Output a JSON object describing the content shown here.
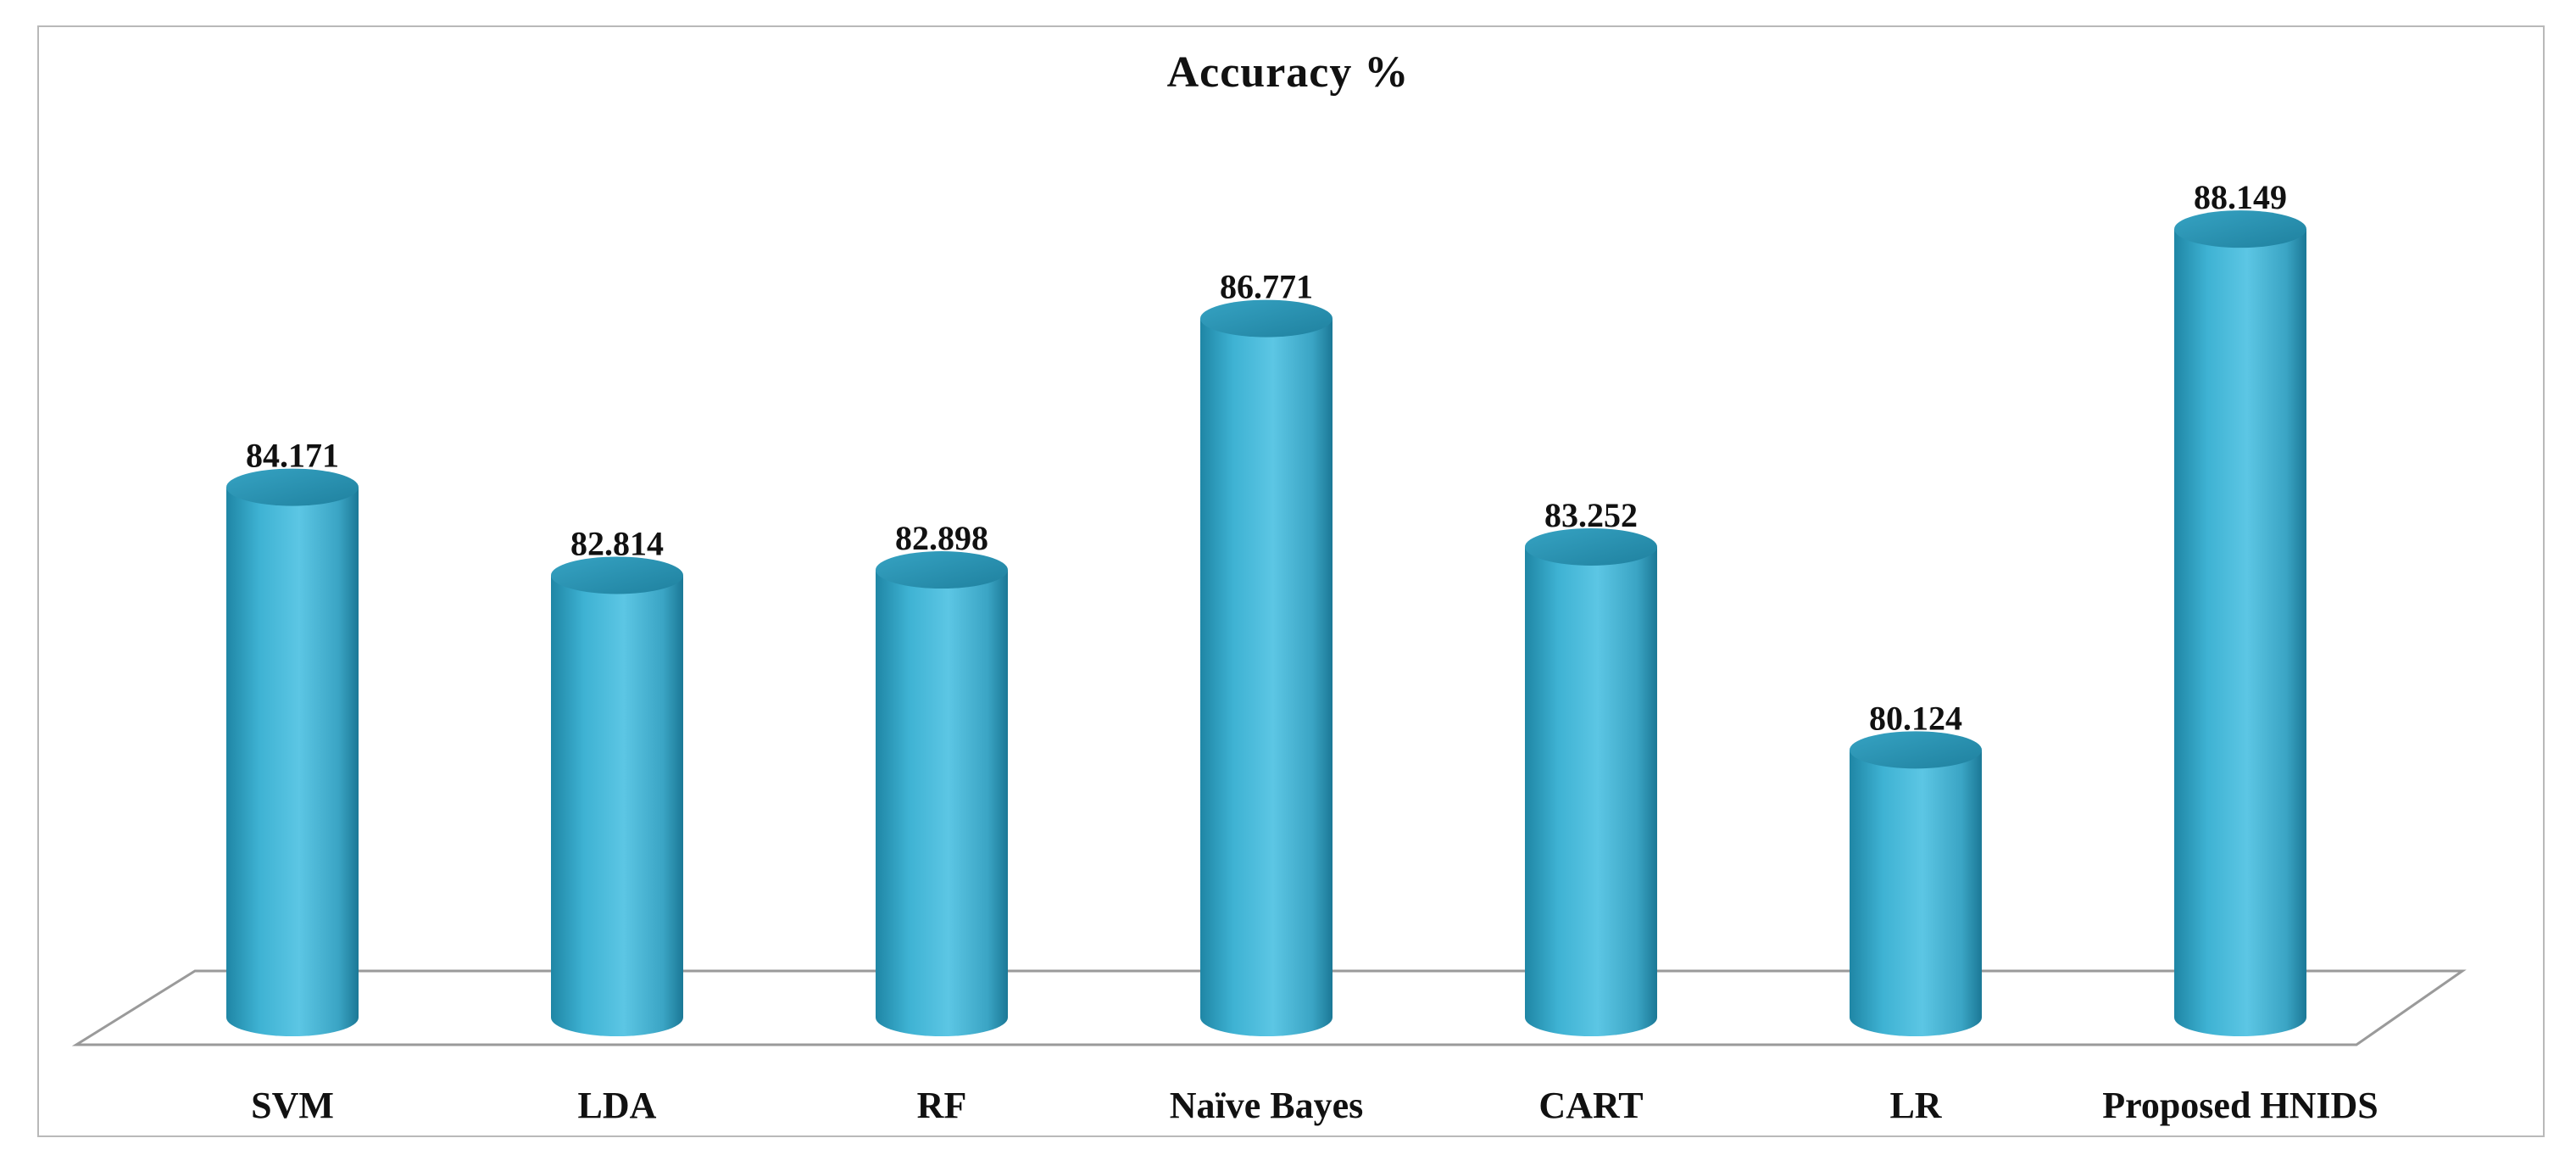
{
  "chart_data": {
    "type": "bar",
    "style": "3d-cylinder",
    "title": "Accuracy %",
    "categories": [
      "SVM",
      "LDA",
      "RF",
      "Naïve Bayes",
      "CART",
      "LR",
      "Proposed HNIDS"
    ],
    "values": [
      84.171,
      82.814,
      82.898,
      86.771,
      83.252,
      80.124,
      88.149
    ],
    "value_labels": [
      "84.171",
      "82.814",
      "82.898",
      "86.771",
      "83.252",
      "80.124",
      "88.149"
    ],
    "xlabel": "",
    "ylabel": "",
    "ylim": [
      76,
      89
    ],
    "grid": false,
    "legend": "none",
    "colors": {
      "bar_light": "#5cc4e2",
      "bar_mid": "#3aa8c8",
      "bar_dark": "#1e7f9c",
      "bar_top": "#2b8fae",
      "floor_line": "#9a9a9a",
      "frame": "#b9b9b9",
      "text": "#111111"
    }
  }
}
